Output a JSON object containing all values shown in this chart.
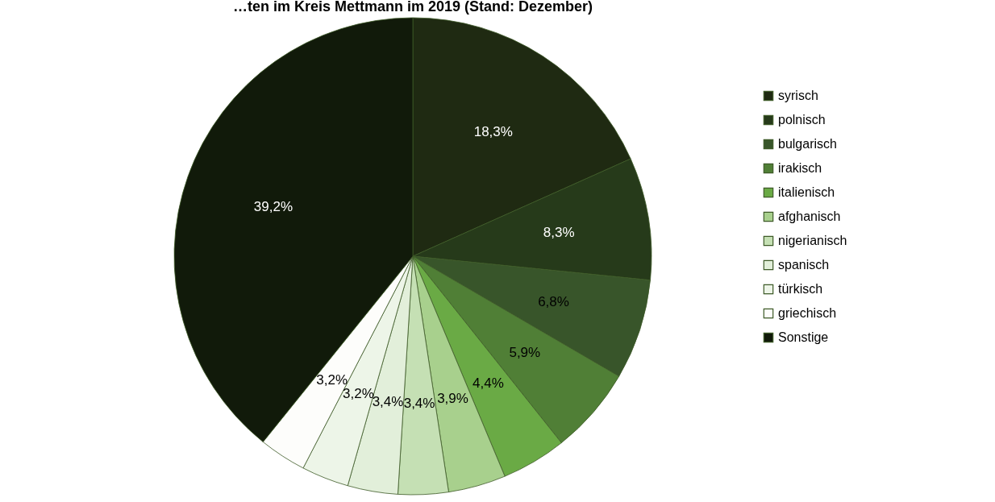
{
  "chart_data": {
    "type": "pie",
    "title": "…ten im Kreis Mettmann im 2019 (Stand: Dezember)",
    "categories": [
      "syrisch",
      "polnisch",
      "bulgarisch",
      "irakisch",
      "italienisch",
      "afghanisch",
      "nigerianisch",
      "spanisch",
      "türkisch",
      "griechisch",
      "Sonstige"
    ],
    "values": [
      18.3,
      8.3,
      6.8,
      5.9,
      4.4,
      3.9,
      3.4,
      3.4,
      3.2,
      3.2,
      39.2
    ],
    "colors": [
      "#1f2a12",
      "#263a1a",
      "#38552a",
      "#507f36",
      "#6aaa45",
      "#a8d08d",
      "#c5e0b4",
      "#e2efda",
      "#edf5e8",
      "#fdfdfb",
      "#111a0a"
    ],
    "value_labels": [
      "18,3%",
      "8,3%",
      "6,8%",
      "5,9%",
      "4,4%",
      "3,9%",
      "3,4%",
      "3,4%",
      "3,2%",
      "3,2%",
      "39,2%"
    ],
    "legend": "right"
  }
}
